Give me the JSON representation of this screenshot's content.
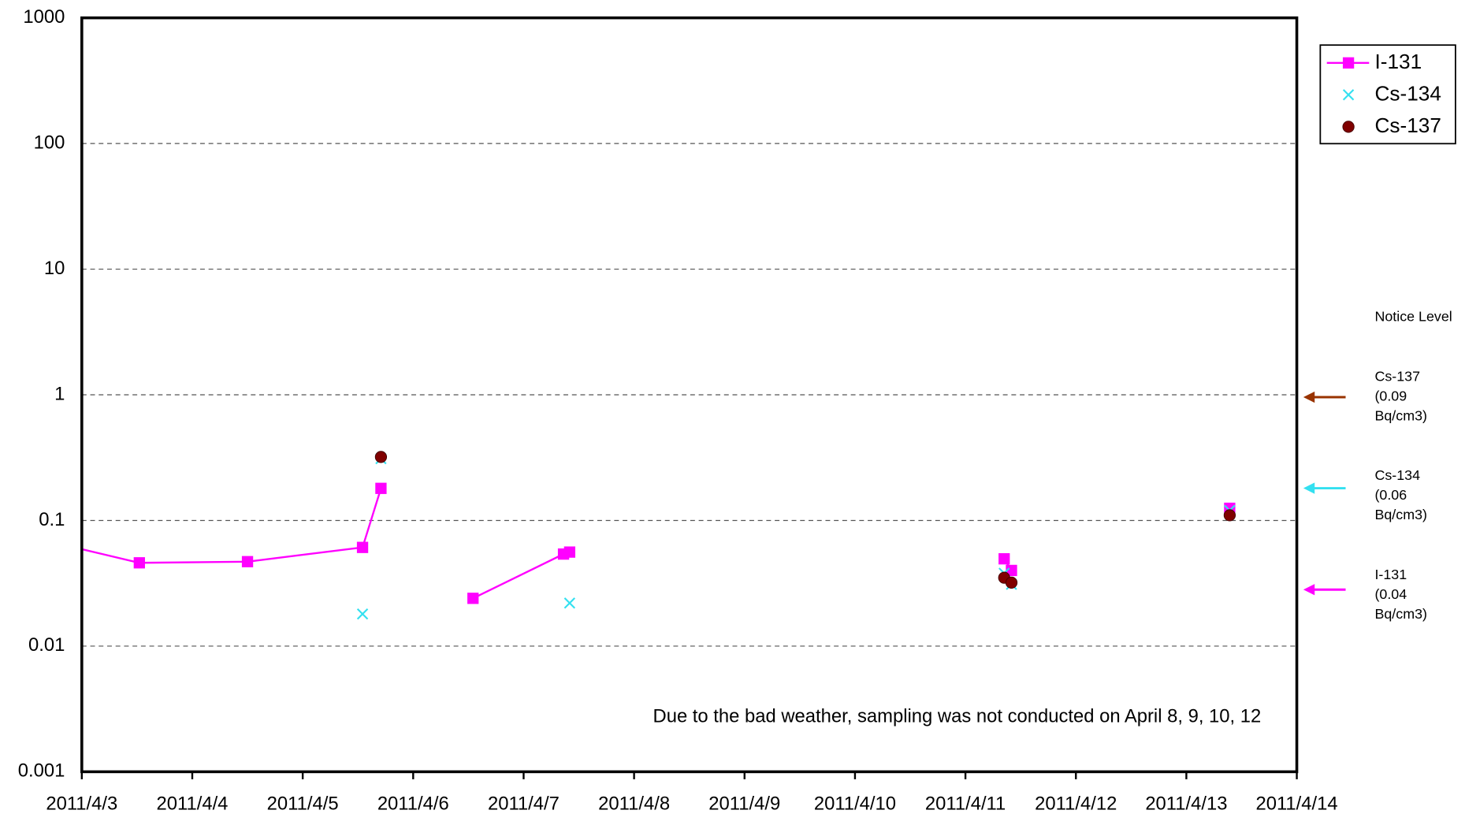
{
  "chart_data": {
    "type": "line",
    "log_y": true,
    "grid": true,
    "legend": "upper right",
    "xlim": [
      "2011-04-03",
      "2011-04-14"
    ],
    "xticks": [
      {
        "value": "2011-04-03",
        "label": "2011/4/3"
      },
      {
        "value": "2011-04-04",
        "label": "2011/4/4"
      },
      {
        "value": "2011-04-05",
        "label": "2011/4/5"
      },
      {
        "value": "2011-04-06",
        "label": "2011/4/6"
      },
      {
        "value": "2011-04-07",
        "label": "2011/4/7"
      },
      {
        "value": "2011-04-08",
        "label": "2011/4/8"
      },
      {
        "value": "2011-04-09",
        "label": "2011/4/9"
      },
      {
        "value": "2011-04-10",
        "label": "2011/4/10"
      },
      {
        "value": "2011-04-11",
        "label": "2011/4/11"
      },
      {
        "value": "2011-04-12",
        "label": "2011/4/12"
      },
      {
        "value": "2011-04-13",
        "label": "2011/4/13"
      },
      {
        "value": "2011-04-14",
        "label": "2011/4/14"
      }
    ],
    "ylim": [
      0.001,
      1000
    ],
    "yticks": [
      1000,
      100,
      10,
      1,
      0.1,
      0.01,
      0.001
    ],
    "series": [
      {
        "name": "I-131",
        "color": "#ff00ff",
        "marker": "square",
        "line": true,
        "x": [
          "2011-04-02T12:00",
          "2011-04-03T12:30",
          "2011-04-04T12:00",
          "2011-04-05T13:00",
          "2011-04-05T17:00",
          "2011-04-06T00:00",
          "2011-04-06T13:00",
          "2011-04-07T08:40",
          "2011-04-07T10:00",
          "2011-04-09T00:00",
          "2011-04-11T08:25",
          "2011-04-11T10:00",
          "2011-04-12T00:00",
          "2011-04-13T09:25"
        ],
        "values": [
          0.075,
          0.046,
          0.047,
          0.061,
          0.18,
          null,
          0.024,
          0.054,
          0.056,
          null,
          0.0495,
          0.04,
          null,
          0.125
        ]
      },
      {
        "name": "Cs-134",
        "color": "#33e0f0",
        "marker": "x",
        "line": false,
        "x": [
          "2011-04-05T13:00",
          "2011-04-05T17:00",
          "2011-04-07T10:00",
          "2011-04-11T08:25",
          "2011-04-11T10:00",
          "2011-04-13T09:25"
        ],
        "values": [
          0.018,
          0.31,
          0.022,
          0.038,
          0.031,
          0.12
        ]
      },
      {
        "name": "Cs-137",
        "color": "#800000",
        "marker": "circle",
        "line": false,
        "x": [
          "2011-04-05T17:00",
          "2011-04-11T08:25",
          "2011-04-11T10:00",
          "2011-04-13T09:25"
        ],
        "values": [
          0.32,
          0.035,
          0.032,
          0.11
        ]
      }
    ],
    "annotation": "Due to the bad weather, sampling was not conducted on April 8, 9, 10, 12",
    "notice_level": {
      "title": "Notice Level",
      "items": [
        {
          "name": "Cs-137",
          "lines": [
            "(0.09",
            "Bq/cm3)"
          ],
          "color": "#993300"
        },
        {
          "name": "Cs-134",
          "lines": [
            "(0.06",
            "Bq/cm3)"
          ],
          "color": "#33e0f0"
        },
        {
          "name": "I-131",
          "lines": [
            "(0.04",
            "Bq/cm3)"
          ],
          "color": "#ff00ff"
        }
      ]
    }
  }
}
